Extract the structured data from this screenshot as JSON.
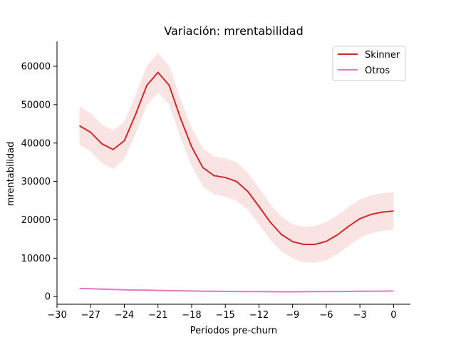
{
  "chart_data": {
    "type": "line",
    "title": "Variación: mrentabilidad",
    "xlabel": "Períodos pre-churn",
    "ylabel": "mrentabilidad",
    "xlim": [
      -30,
      1.5
    ],
    "ylim": [
      -2000,
      66500
    ],
    "xticks": [
      -30,
      -27,
      -24,
      -21,
      -18,
      -15,
      -12,
      -9,
      -6,
      -3,
      0
    ],
    "xtick_labels": [
      "−30",
      "−27",
      "−24",
      "−21",
      "−18",
      "−15",
      "−12",
      "−9",
      "−6",
      "−3",
      "0"
    ],
    "yticks": [
      0,
      10000,
      20000,
      30000,
      40000,
      50000,
      60000
    ],
    "ytick_labels": [
      "0",
      "10000",
      "20000",
      "30000",
      "40000",
      "50000",
      "60000"
    ],
    "grid": false,
    "legend_position": "top-right",
    "x": [
      -28,
      -27,
      -26,
      -25,
      -24,
      -23,
      -22,
      -21,
      -20,
      -19,
      -18,
      -17,
      -16,
      -15,
      -14,
      -13,
      -12,
      -11,
      -10,
      -9,
      -8,
      -7,
      -6,
      -5,
      -4,
      -3,
      -2,
      -1,
      0
    ],
    "series": [
      {
        "name": "Skinner",
        "color": "#d62728",
        "band_color": "#f6d0d0",
        "values": [
          44500,
          42800,
          39800,
          38300,
          40600,
          47400,
          55000,
          58400,
          55000,
          46500,
          39000,
          33600,
          31500,
          31000,
          30000,
          27400,
          23500,
          19400,
          16200,
          14300,
          13600,
          13600,
          14400,
          16100,
          18300,
          20300,
          21400,
          22000,
          22300
        ],
        "lower": [
          39500,
          37800,
          34800,
          33200,
          35800,
          42400,
          49800,
          53200,
          50000,
          41500,
          34000,
          28700,
          26700,
          26000,
          25000,
          22600,
          18800,
          14800,
          11800,
          10000,
          9000,
          8800,
          9500,
          11100,
          13200,
          15300,
          16500,
          17100,
          17400
        ],
        "upper": [
          49500,
          47800,
          44800,
          43300,
          45600,
          52400,
          60000,
          63400,
          60100,
          51500,
          44000,
          38600,
          36400,
          36000,
          35000,
          32300,
          28300,
          24100,
          20800,
          18800,
          18200,
          18400,
          19400,
          21200,
          23400,
          25300,
          26400,
          26900,
          27200
        ]
      },
      {
        "name": "Otros",
        "color": "#e377c2",
        "values": [
          2100,
          2050,
          1950,
          1850,
          1750,
          1700,
          1650,
          1600,
          1550,
          1500,
          1450,
          1400,
          1380,
          1350,
          1320,
          1300,
          1280,
          1260,
          1250,
          1250,
          1260,
          1280,
          1300,
          1320,
          1350,
          1380,
          1400,
          1420,
          1450
        ]
      }
    ]
  }
}
